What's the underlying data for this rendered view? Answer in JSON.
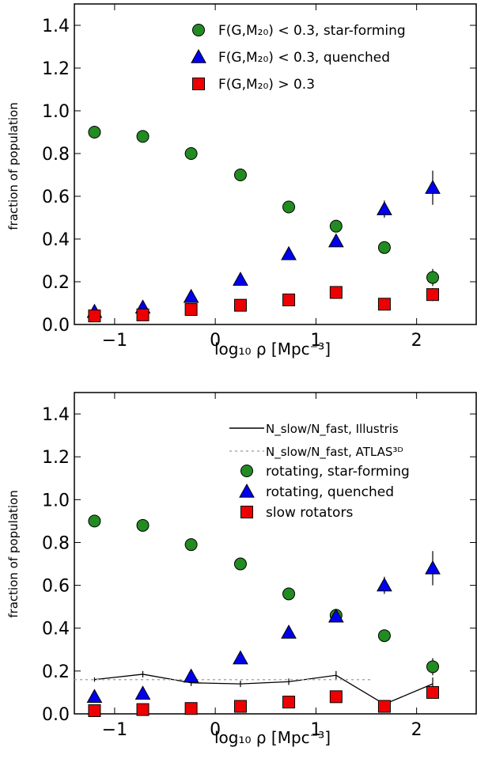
{
  "chart_data": [
    {
      "type": "scatter",
      "xlabel": "log₁₀ ρ [Mpc⁻³]",
      "ylabel": "fraction of population",
      "xlim": [
        -1.4,
        2.6
      ],
      "ylim": [
        0.0,
        1.5
      ],
      "xticks": [
        -1,
        0,
        1,
        2
      ],
      "yticks": [
        0.0,
        0.2,
        0.4,
        0.6,
        0.8,
        1.0,
        1.2,
        1.4
      ],
      "xtick_labels": [
        "−1",
        "0",
        "1",
        "2"
      ],
      "ytick_labels": [
        "0.0",
        "0.2",
        "0.4",
        "0.6",
        "0.8",
        "1.0",
        "1.2",
        "1.4"
      ],
      "legend_position": "top-right",
      "series": [
        {
          "name": "F(G,M₂₀) < 0.3, star-forming",
          "marker": "circle",
          "color": "#228b22",
          "x": [
            -1.2,
            -0.72,
            -0.24,
            0.25,
            0.73,
            1.2,
            1.68,
            2.16
          ],
          "y": [
            0.9,
            0.88,
            0.8,
            0.7,
            0.55,
            0.46,
            0.36,
            0.22
          ],
          "yerr": [
            0.005,
            0.005,
            0.005,
            0.008,
            0.01,
            0.015,
            0.02,
            0.04
          ]
        },
        {
          "name": "F(G,M₂₀) < 0.3, quenched",
          "marker": "triangle",
          "color": "#0000ee",
          "x": [
            -1.2,
            -0.72,
            -0.24,
            0.25,
            0.73,
            1.2,
            1.68,
            2.16
          ],
          "y": [
            0.06,
            0.08,
            0.13,
            0.21,
            0.33,
            0.39,
            0.54,
            0.64
          ],
          "yerr": [
            0.005,
            0.005,
            0.005,
            0.008,
            0.01,
            0.015,
            0.04,
            0.08
          ]
        },
        {
          "name": "F(G,M₂₀) > 0.3",
          "marker": "square",
          "color": "#ee0000",
          "x": [
            -1.2,
            -0.72,
            -0.24,
            0.25,
            0.73,
            1.2,
            1.68,
            2.16
          ],
          "y": [
            0.04,
            0.045,
            0.07,
            0.09,
            0.115,
            0.15,
            0.095,
            0.14
          ],
          "yerr": [
            0.003,
            0.003,
            0.005,
            0.005,
            0.008,
            0.01,
            0.015,
            0.03
          ]
        }
      ]
    },
    {
      "type": "scatter",
      "xlabel": "log₁₀ ρ [Mpc⁻³]",
      "ylabel": "fraction of population",
      "xlim": [
        -1.4,
        2.6
      ],
      "ylim": [
        0.0,
        1.5
      ],
      "xticks": [
        -1,
        0,
        1,
        2
      ],
      "yticks": [
        0.0,
        0.2,
        0.4,
        0.6,
        0.8,
        1.0,
        1.2,
        1.4
      ],
      "xtick_labels": [
        "−1",
        "0",
        "1",
        "2"
      ],
      "ytick_labels": [
        "0.0",
        "0.2",
        "0.4",
        "0.6",
        "0.8",
        "1.0",
        "1.2",
        "1.4"
      ],
      "legend_position": "top-right",
      "lines": [
        {
          "name": "N_slow/N_fast, Illustris",
          "style": "solid",
          "color": "#000000",
          "x": [
            -1.2,
            -0.72,
            -0.24,
            0.25,
            0.73,
            1.2,
            1.68,
            2.16
          ],
          "y": [
            0.16,
            0.185,
            0.145,
            0.14,
            0.15,
            0.18,
            0.045,
            0.14
          ],
          "yerr": [
            0.01,
            0.015,
            0.015,
            0.015,
            0.015,
            0.02,
            0.015,
            0.03
          ]
        },
        {
          "name": "N_slow/N_fast, ATLAS³ᴰ",
          "style": "dotted",
          "color": "#aaaaaa",
          "x": [
            -1.4,
            1.55
          ],
          "y": [
            0.16,
            0.16
          ]
        }
      ],
      "series": [
        {
          "name": "rotating, star-forming",
          "marker": "circle",
          "color": "#228b22",
          "x": [
            -1.2,
            -0.72,
            -0.24,
            0.25,
            0.73,
            1.2,
            1.68,
            2.16
          ],
          "y": [
            0.9,
            0.88,
            0.79,
            0.7,
            0.56,
            0.46,
            0.365,
            0.22
          ],
          "yerr": [
            0.005,
            0.005,
            0.005,
            0.008,
            0.01,
            0.015,
            0.02,
            0.04
          ]
        },
        {
          "name": "rotating, quenched",
          "marker": "triangle",
          "color": "#0000ee",
          "x": [
            -1.2,
            -0.72,
            -0.24,
            0.25,
            0.73,
            1.2,
            1.68,
            2.16
          ],
          "y": [
            0.08,
            0.095,
            0.175,
            0.26,
            0.38,
            0.455,
            0.6,
            0.68
          ],
          "yerr": [
            0.005,
            0.005,
            0.005,
            0.008,
            0.01,
            0.015,
            0.04,
            0.08
          ]
        },
        {
          "name": "slow rotators",
          "marker": "square",
          "color": "#ee0000",
          "x": [
            -1.2,
            -0.72,
            -0.24,
            0.25,
            0.73,
            1.2,
            1.68,
            2.16
          ],
          "y": [
            0.015,
            0.02,
            0.025,
            0.035,
            0.055,
            0.08,
            0.035,
            0.1
          ],
          "yerr": [
            0.003,
            0.003,
            0.004,
            0.005,
            0.006,
            0.01,
            0.01,
            0.02
          ]
        }
      ]
    }
  ]
}
